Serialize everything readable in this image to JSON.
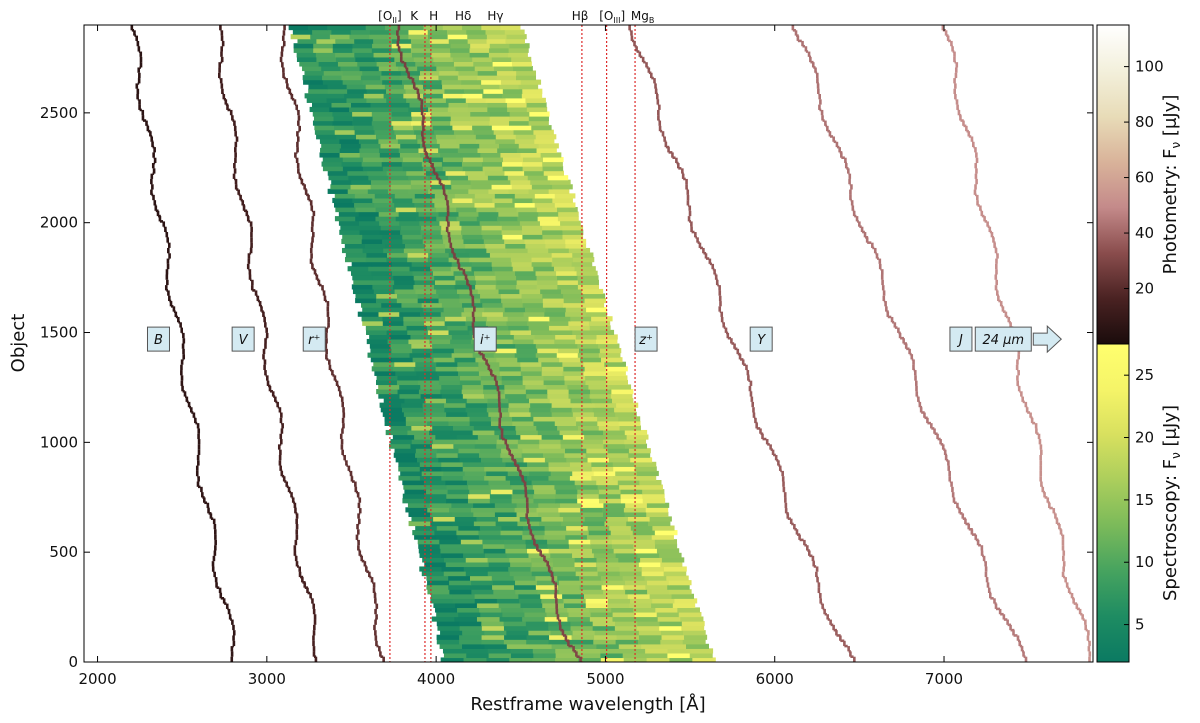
{
  "chart_data": {
    "type": "heatmap",
    "xlabel": "Restframe wavelength [Å]",
    "ylabel": "Object",
    "xlim": [
      1920,
      7880
    ],
    "ylim": [
      0,
      2900
    ],
    "x_ticks": [
      2000,
      3000,
      4000,
      5000,
      6000,
      7000
    ],
    "y_ticks": [
      0,
      500,
      1000,
      1500,
      2000,
      2500
    ],
    "spectral_lines": [
      {
        "label": "[O",
        "sub": "II",
        "post": "]",
        "x": 3727,
        "marked": true
      },
      {
        "label": "K",
        "sub": "",
        "post": "",
        "x": 3934,
        "marked": true
      },
      {
        "label": "H",
        "sub": "",
        "post": "",
        "x": 3969,
        "marked": true
      },
      {
        "label": "Hδ",
        "sub": "",
        "post": "",
        "x": 4102,
        "marked": false
      },
      {
        "label": "Hγ",
        "sub": "",
        "post": "",
        "x": 4340,
        "marked": false
      },
      {
        "label": "Hβ",
        "sub": "",
        "post": "",
        "x": 4861,
        "marked": true
      },
      {
        "label": "[O",
        "sub": "III",
        "post": "]",
        "x": 5007,
        "marked": true
      },
      {
        "label": "Mg",
        "sub": "B",
        "post": "",
        "x": 5175,
        "marked": true
      }
    ],
    "photometric_bands": [
      {
        "label": "B",
        "x_at_top": 2200,
        "x_at_bottom": 2820,
        "label_x": 2360
      },
      {
        "label": "V",
        "x_at_top": 2700,
        "x_at_bottom": 3320,
        "label_x": 2860
      },
      {
        "label": "r⁺",
        "x_at_top": 3080,
        "x_at_bottom": 3700,
        "label_x": 3280
      },
      {
        "label": "i⁺",
        "x_at_top": 3770,
        "x_at_bottom": 4840,
        "label_x": 4290
      },
      {
        "label": "z⁺",
        "x_at_top": 5160,
        "x_at_bottom": 6450,
        "label_x": 5240
      },
      {
        "label": "Y",
        "x_at_top": 6130,
        "x_at_bottom": 7480,
        "label_x": 5920
      },
      {
        "label": "J",
        "x_at_top": 7000,
        "x_at_bottom": 7880,
        "label_x": 7100
      },
      {
        "label": "24 μm",
        "x_at_top": null,
        "x_at_bottom": null,
        "label_x": 7350
      }
    ],
    "spectroscopy_region": {
      "left_edge_top": 3140,
      "left_edge_bottom": 4050,
      "right_edge_top": 4500,
      "right_edge_bottom": 5640
    },
    "colorbars": [
      {
        "name": "Photometry",
        "label": "Photometry: F",
        "sub": "ν",
        "unit": " [μJy]",
        "range": [
          0,
          115
        ],
        "ticks": [
          20,
          40,
          60,
          80,
          100
        ],
        "colors": [
          "#1a0c0c",
          "#4a2222",
          "#8a4d4d",
          "#c48a8a",
          "#d9b39a",
          "#e8dcb8",
          "#f3f0dc",
          "#ffffff"
        ]
      },
      {
        "name": "Spectroscopy",
        "label": "Spectroscopy: F",
        "sub": "ν",
        "unit": " [μJy]",
        "range": [
          2,
          27.5
        ],
        "ticks": [
          5,
          10,
          15,
          20,
          25
        ],
        "colors": [
          "#0b7a62",
          "#1e8c62",
          "#46a35f",
          "#7bba5a",
          "#abce5c",
          "#d8e05f",
          "#f5f468",
          "#ffff6e"
        ]
      }
    ]
  }
}
